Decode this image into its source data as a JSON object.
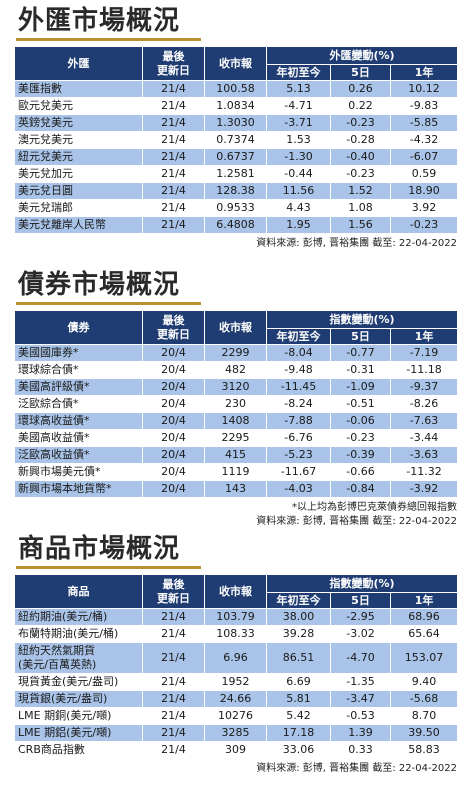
{
  "colors": {
    "header": "#1f3d73",
    "stripe": "#a9c4e8",
    "accent_rule": "#b7922e"
  },
  "fx": {
    "title": "外匯市場概況",
    "headers": {
      "name": "外匯",
      "date": "最後\n更新日",
      "close": "收市報",
      "group": "外匯變動(%)",
      "ytd": "年初至今",
      "d5": "5日",
      "y1": "1年"
    },
    "rows": [
      {
        "name": "美匯指數",
        "date": "21/4",
        "close": "100.58",
        "ytd": "5.13",
        "d5": "0.26",
        "y1": "10.12"
      },
      {
        "name": "歐元兌美元",
        "date": "21/4",
        "close": "1.0834",
        "ytd": "-4.71",
        "d5": "0.22",
        "y1": "-9.83"
      },
      {
        "name": "英鎊兌美元",
        "date": "21/4",
        "close": "1.3030",
        "ytd": "-3.71",
        "d5": "-0.23",
        "y1": "-5.85"
      },
      {
        "name": "澳元兌美元",
        "date": "21/4",
        "close": "0.7374",
        "ytd": "1.53",
        "d5": "-0.28",
        "y1": "-4.32"
      },
      {
        "name": "紐元兌美元",
        "date": "21/4",
        "close": "0.6737",
        "ytd": "-1.30",
        "d5": "-0.40",
        "y1": "-6.07"
      },
      {
        "name": "美元兌加元",
        "date": "21/4",
        "close": "1.2581",
        "ytd": "-0.44",
        "d5": "-0.23",
        "y1": "0.59"
      },
      {
        "name": "美元兌日圓",
        "date": "21/4",
        "close": "128.38",
        "ytd": "11.56",
        "d5": "1.52",
        "y1": "18.90"
      },
      {
        "name": "美元兌瑞郎",
        "date": "21/4",
        "close": "0.9533",
        "ytd": "4.43",
        "d5": "1.08",
        "y1": "3.92"
      },
      {
        "name": "美元兌離岸人民幣",
        "date": "21/4",
        "close": "6.4808",
        "ytd": "1.95",
        "d5": "1.56",
        "y1": "-0.23"
      }
    ],
    "source": "資料來源: 彭博, 晋裕集團 截至: 22-04-2022"
  },
  "bonds": {
    "title": "債券市場概況",
    "headers": {
      "name": "債券",
      "date": "最後\n更新日",
      "close": "收市報",
      "group": "指數變動(%)",
      "ytd": "年初至今",
      "d5": "5日",
      "y1": "1年"
    },
    "rows": [
      {
        "name": "美國國庫券*",
        "date": "20/4",
        "close": "2299",
        "ytd": "-8.04",
        "d5": "-0.77",
        "y1": "-7.19"
      },
      {
        "name": "環球綜合債*",
        "date": "20/4",
        "close": "482",
        "ytd": "-9.48",
        "d5": "-0.31",
        "y1": "-11.18"
      },
      {
        "name": "美國高評級債*",
        "date": "20/4",
        "close": "3120",
        "ytd": "-11.45",
        "d5": "-1.09",
        "y1": "-9.37"
      },
      {
        "name": "泛歐綜合債*",
        "date": "20/4",
        "close": "230",
        "ytd": "-8.24",
        "d5": "-0.51",
        "y1": "-8.26"
      },
      {
        "name": "環球高收益債*",
        "date": "20/4",
        "close": "1408",
        "ytd": "-7.88",
        "d5": "-0.06",
        "y1": "-7.63"
      },
      {
        "name": "美國高收益債*",
        "date": "20/4",
        "close": "2295",
        "ytd": "-6.76",
        "d5": "-0.23",
        "y1": "-3.44"
      },
      {
        "name": "泛歐高收益債*",
        "date": "20/4",
        "close": "415",
        "ytd": "-5.23",
        "d5": "-0.39",
        "y1": "-3.63"
      },
      {
        "name": "新興市場美元債*",
        "date": "20/4",
        "close": "1119",
        "ytd": "-11.67",
        "d5": "-0.66",
        "y1": "-11.32"
      },
      {
        "name": "新興市場本地貨幣*",
        "date": "20/4",
        "close": "143",
        "ytd": "-4.03",
        "d5": "-0.84",
        "y1": "-3.92"
      }
    ],
    "note": "*以上均為彭博巴克萊債券總回報指數",
    "source": "資料來源: 彭博, 晋裕集團 截至: 22-04-2022"
  },
  "commodities": {
    "title": "商品市場概況",
    "headers": {
      "name": "商品",
      "date": "最後\n更新日",
      "close": "收市報",
      "group": "指數變動(%)",
      "ytd": "年初至今",
      "d5": "5日",
      "y1": "1年"
    },
    "rows": [
      {
        "name": "紐約期油(美元/桶)",
        "date": "21/4",
        "close": "103.79",
        "ytd": "38.00",
        "d5": "-2.95",
        "y1": "68.96"
      },
      {
        "name": "布蘭特期油(美元/桶)",
        "date": "21/4",
        "close": "108.33",
        "ytd": "39.28",
        "d5": "-3.02",
        "y1": "65.64"
      },
      {
        "name": "紐約天然氣期貨\n(美元/百萬英熱)",
        "date": "21/4",
        "close": "6.96",
        "ytd": "86.51",
        "d5": "-4.70",
        "y1": "153.07"
      },
      {
        "name": "現貨黃金(美元/盎司)",
        "date": "21/4",
        "close": "1952",
        "ytd": "6.69",
        "d5": "-1.35",
        "y1": "9.40"
      },
      {
        "name": "現貨銀(美元/盎司)",
        "date": "21/4",
        "close": "24.66",
        "ytd": "5.81",
        "d5": "-3.47",
        "y1": "-5.68"
      },
      {
        "name": "LME 期銅(美元/噸)",
        "date": "21/4",
        "close": "10276",
        "ytd": "5.42",
        "d5": "-0.53",
        "y1": "8.70"
      },
      {
        "name": "LME 期鋁(美元/噸)",
        "date": "21/4",
        "close": "3285",
        "ytd": "17.18",
        "d5": "1.39",
        "y1": "39.50"
      },
      {
        "name": "CRB商品指數",
        "date": "21/4",
        "close": "309",
        "ytd": "33.06",
        "d5": "0.33",
        "y1": "58.83"
      }
    ],
    "source": "資料來源: 彭博, 晋裕集團 截至: 22-04-2022"
  }
}
